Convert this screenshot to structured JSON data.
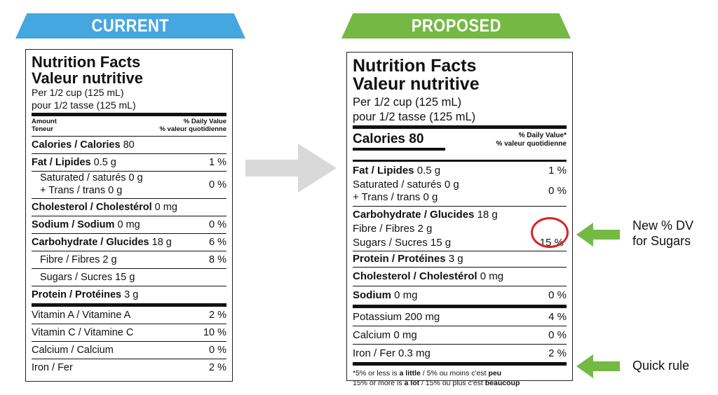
{
  "banners": {
    "current": "CURRENT",
    "proposed": "PROPOSED"
  },
  "current_label": {
    "title_en": "Nutrition Facts",
    "title_fr": "Valeur nutritive",
    "serving_en": "Per 1/2 cup (125 mL)",
    "serving_fr": "pour 1/2 tasse (125 mL)",
    "header_left": [
      "Amount",
      "Teneur"
    ],
    "header_right": [
      "% Daily Value",
      "% valeur quotidienne"
    ],
    "calories": {
      "label": "Calories / Calories",
      "value": "80"
    },
    "fat": {
      "label": "Fat / Lipides",
      "amount": "0.5 g",
      "pct": "1 %"
    },
    "saturated": "Saturated / saturés 0 g",
    "trans": "+ Trans / trans 0 g",
    "sat_trans_pct": "0 %",
    "cholesterol": {
      "label": "Cholesterol / Cholestérol",
      "amount": "0 mg"
    },
    "sodium": {
      "label": "Sodium / Sodium",
      "amount": "0 mg",
      "pct": "0 %"
    },
    "carbohydrate": {
      "label": "Carbohydrate / Glucides",
      "amount": "18 g",
      "pct": "6 %"
    },
    "fibre": {
      "label": "Fibre / Fibres 2 g",
      "pct": "8 %"
    },
    "sugars": {
      "label": "Sugars / Sucres 15 g"
    },
    "protein": {
      "label": "Protein / Protéines",
      "amount": "3 g"
    },
    "vitamin_a": {
      "label": "Vitamin A / Vitamine A",
      "pct": "2 %"
    },
    "vitamin_c": {
      "label": "Vitamin C / Vitamine C",
      "pct": "10 %"
    },
    "calcium": {
      "label": "Calcium / Calcium",
      "pct": "0 %"
    },
    "iron": {
      "label": "Iron / Fer",
      "pct": "2 %"
    }
  },
  "proposed_label": {
    "title_en": "Nutrition Facts",
    "title_fr": "Valeur nutritive",
    "serving_en": "Per 1/2 cup (125 mL)",
    "serving_fr": "pour 1/2 tasse (125 mL)",
    "calories": "Calories 80",
    "dv_header": [
      "% Daily Value*",
      "% valeur quotidienne"
    ],
    "fat": {
      "label": "Fat / Lipides",
      "amount": "0.5 g",
      "pct": "1 %"
    },
    "saturated": "Saturated / saturés 0 g",
    "trans": "+ Trans / trans 0 g",
    "sat_trans_pct": "0 %",
    "carbohydrate": {
      "label": "Carbohydrate / Glucides",
      "amount": "18 g"
    },
    "fibre": "Fibre / Fibres 2 g",
    "sugars": {
      "label": "Sugars / Sucres 15 g",
      "pct": "15 %"
    },
    "protein": {
      "label": "Protein / Protéines",
      "amount": "3 g"
    },
    "cholesterol": {
      "label": "Cholesterol / Cholestérol",
      "amount": "0 mg"
    },
    "sodium": {
      "label": "Sodium",
      "amount": "0 mg",
      "pct": "0 %"
    },
    "potassium": {
      "label": "Potassium 200 mg",
      "pct": "4 %"
    },
    "calcium": {
      "label": "Calcium 0 mg",
      "pct": "0 %"
    },
    "iron": {
      "label": "Iron / Fer 0.3 mg",
      "pct": "2 %"
    },
    "footnote": {
      "l1_a": "*5% or less is ",
      "l1_b": "a little",
      "l1_c": " / 5% ou moins c'est ",
      "l1_d": "peu",
      "l2_a": "15% or more is ",
      "l2_b": "a lot",
      "l2_c": " / 15% ou plus c'est ",
      "l2_d": "beaucoup"
    }
  },
  "annotations": {
    "sugars_dv": [
      "New % DV",
      "for Sugars"
    ],
    "quick_rule": "Quick rule"
  },
  "colors": {
    "current": "#45a7e0",
    "proposed": "#74b943",
    "arrow_green": "#74b943",
    "arrow_grey": "#d9d9d9",
    "circle": "#d8232a"
  },
  "icons": [
    "right-arrow-icon"
  ]
}
